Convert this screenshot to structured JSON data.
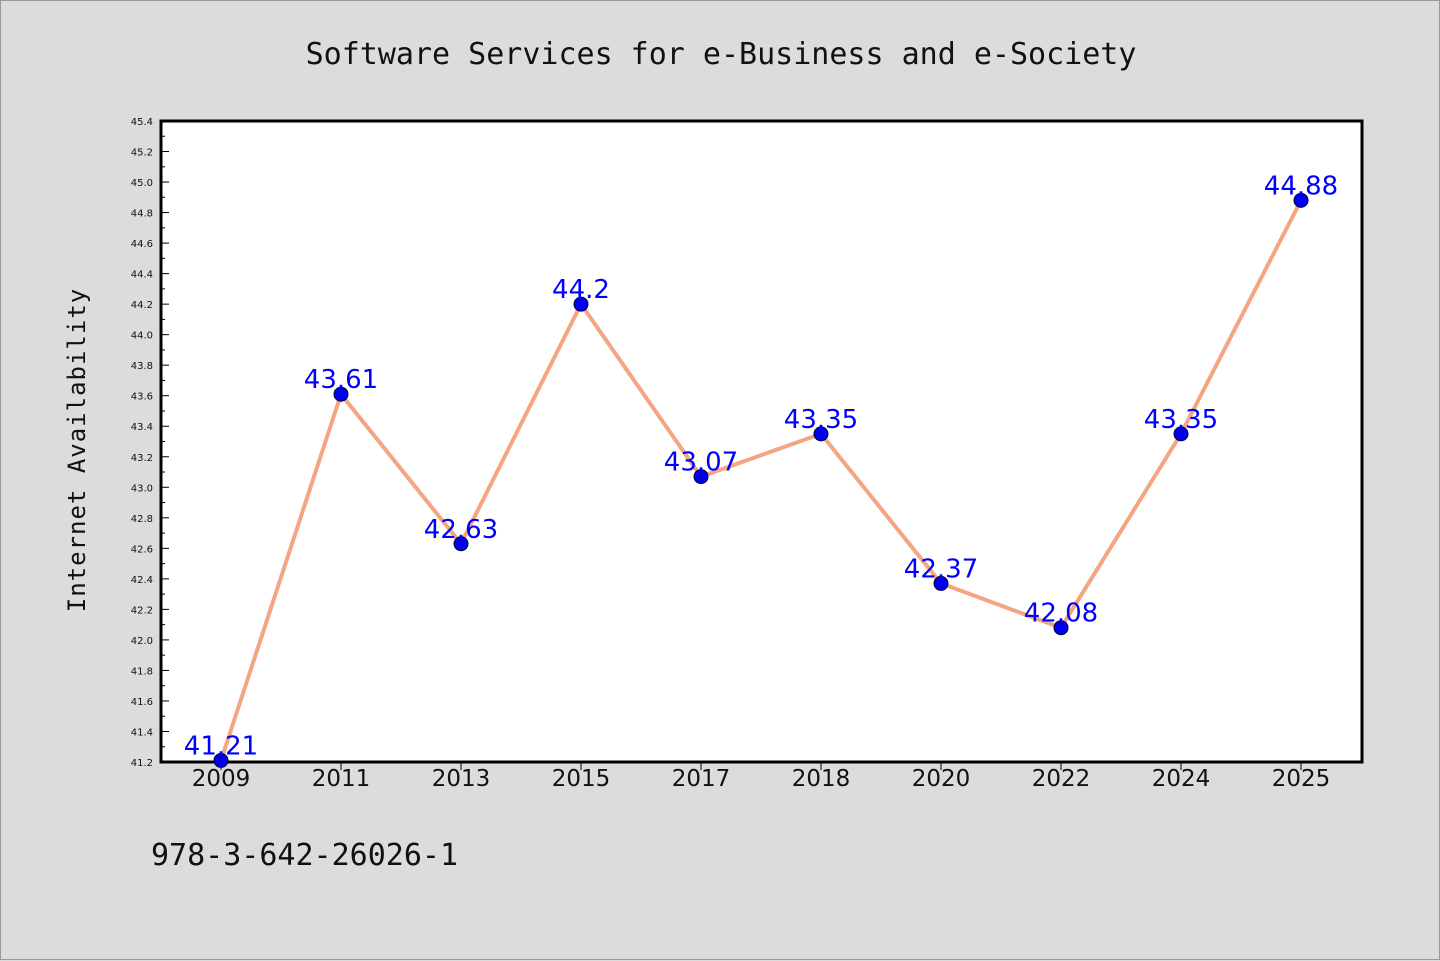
{
  "chart_data": {
    "type": "line",
    "title": "Software Services for e-Business and e-Society",
    "xlabel": "",
    "ylabel": "Internet Availability",
    "categories": [
      "2009",
      "2011",
      "2013",
      "2015",
      "2017",
      "2018",
      "2020",
      "2022",
      "2024",
      "2025"
    ],
    "series": [
      {
        "values": [
          41.21,
          43.61,
          42.63,
          44.2,
          43.07,
          43.35,
          42.37,
          42.08,
          43.35,
          44.88
        ],
        "labels": [
          "41.21",
          "43.61",
          "42.63",
          "44.2",
          "43.07",
          "43.35",
          "42.37",
          "42.08",
          "43.35",
          "44.88"
        ]
      }
    ],
    "ylim": [
      41.2,
      45.4
    ],
    "yticks": [
      "41.2",
      "41.4",
      "41.6",
      "41.8",
      "42.0",
      "42.2",
      "42.4",
      "42.6",
      "42.8",
      "43.0",
      "43.2",
      "43.4",
      "43.6",
      "43.8",
      "44.0",
      "44.2",
      "44.4",
      "44.6",
      "44.8",
      "45.0",
      "45.2",
      "45.4"
    ],
    "grid": false,
    "legend": "none",
    "colors": {
      "line": "#f4a582",
      "marker": "#0000ee",
      "labels": "#0000ff",
      "background": "#dcdcdc",
      "plot_background": "#ffffff"
    }
  },
  "footer": {
    "isbn": "978-3-642-26026-1"
  }
}
